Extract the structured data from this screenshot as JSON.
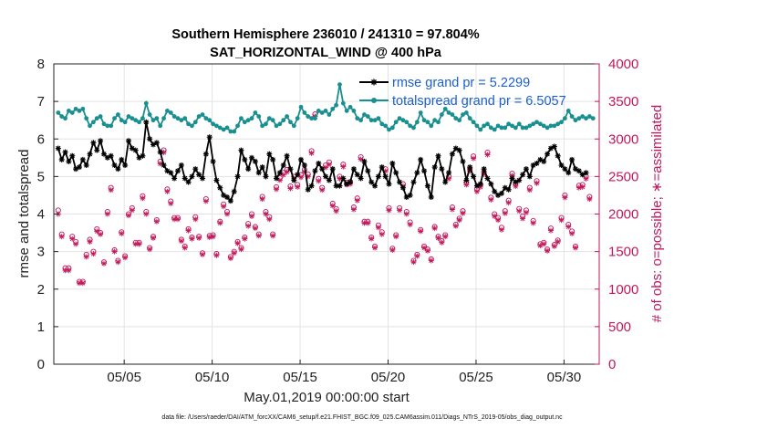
{
  "chart_data": {
    "type": "line",
    "title_line1": "Southern Hemisphere 236010 / 241310 = 97.804%",
    "title_line2": "SAT_HORIZONTAL_WIND @ 400 hPa",
    "xlabel": "May.01,2019 00:00:00 start",
    "ylabel_left": "rmse and totalspread",
    "ylabel_right": "# of obs: o=possible; ∗=assimilated",
    "footer": "data file: /Users/raeder/DAI/ATM_forcXX/CAM6_setup/f.e21.FHIST_BGC.f09_025.CAM6assim.011/Diags_NTrS_2019-05/obs_diag_output.nc",
    "xlim": [
      1,
      32
    ],
    "ylim_left": [
      0,
      8
    ],
    "ylim_right": [
      0,
      4000
    ],
    "x_ticks": [
      5,
      10,
      15,
      20,
      25,
      30
    ],
    "x_tick_labels": [
      "05/05",
      "05/10",
      "05/15",
      "05/20",
      "05/25",
      "05/30"
    ],
    "y_left_ticks": [
      "0",
      "1",
      "2",
      "3",
      "4",
      "5",
      "6",
      "7",
      "8"
    ],
    "y_right_ticks": [
      "0",
      "500",
      "1000",
      "1500",
      "2000",
      "2500",
      "3000",
      "3500",
      "4000"
    ],
    "colors": {
      "rmse": "#000000",
      "spread": "#1a8f8f",
      "obs": "#c2185b",
      "legend_text": "#1a5fd0",
      "grid": "#e3e3e3"
    },
    "series": [
      {
        "name": "rmse grand pr = 5.2299",
        "axis": "left",
        "values": [
          5.75,
          5.45,
          5.65,
          5.4,
          5.55,
          5.2,
          5.25,
          5.45,
          5.3,
          5.6,
          5.9,
          5.7,
          5.95,
          5.6,
          5.5,
          5.55,
          5.3,
          5.2,
          5.45,
          5.3,
          5.95,
          5.75,
          5.7,
          5.5,
          5.55,
          6.45,
          6.0,
          5.85,
          5.9,
          5.65,
          5.3,
          5.15,
          5.1,
          4.95,
          5.15,
          5.3,
          4.95,
          4.85,
          5.0,
          5.2,
          5.05,
          4.95,
          5.6,
          6.05,
          5.4,
          4.9,
          4.7,
          4.5,
          4.45,
          4.35,
          4.6,
          5.0,
          5.7,
          5.45,
          5.2,
          5.5,
          5.4,
          5.1,
          5.25,
          5.0,
          5.6,
          5.45,
          4.95,
          5.1,
          5.3,
          5.55,
          5.2,
          4.9,
          5.05,
          5.45,
          5.3,
          4.65,
          4.75,
          5.15,
          5.35,
          5.2,
          5.0,
          4.9,
          5.2,
          4.75,
          4.75,
          4.95,
          4.8,
          4.85,
          5.2,
          5.05,
          4.95,
          5.4,
          5.15,
          4.85,
          4.75,
          5.0,
          5.25,
          5.0,
          4.8,
          5.35,
          5.1,
          4.85,
          4.7,
          4.45,
          4.5,
          4.85,
          5.1,
          5.45,
          5.15,
          4.75,
          4.45,
          5.25,
          5.55,
          5.2,
          4.85,
          5.1,
          5.6,
          5.75,
          5.7,
          5.4,
          4.9,
          5.25,
          5.0,
          4.75,
          4.8,
          5.2,
          4.95,
          4.8,
          4.6,
          4.5,
          4.55,
          4.7,
          4.65,
          4.95,
          4.85,
          4.9,
          5.05,
          5.2,
          5.0,
          5.3,
          5.35,
          5.45,
          5.4,
          5.6,
          5.75,
          5.8,
          5.55,
          5.3,
          5.2,
          5.1,
          5.45,
          5.2,
          5.15,
          5.05,
          5.1
        ]
      },
      {
        "name": "totalspread grand pr = 6.5057",
        "axis": "left",
        "values": [
          6.7,
          6.6,
          6.55,
          6.75,
          6.7,
          6.8,
          6.75,
          6.8,
          6.55,
          6.35,
          6.45,
          6.55,
          6.6,
          6.4,
          6.35,
          6.35,
          6.55,
          6.65,
          6.5,
          6.45,
          6.6,
          6.55,
          6.5,
          6.45,
          6.55,
          6.95,
          6.65,
          6.5,
          6.55,
          6.35,
          6.55,
          6.75,
          6.7,
          6.6,
          6.55,
          6.5,
          6.55,
          6.4,
          6.35,
          6.45,
          6.6,
          6.65,
          6.55,
          6.5,
          6.4,
          6.35,
          6.3,
          6.25,
          6.3,
          6.2,
          6.2,
          6.35,
          6.55,
          6.45,
          6.5,
          6.55,
          6.7,
          6.6,
          6.35,
          6.4,
          6.55,
          6.5,
          6.35,
          6.4,
          6.5,
          6.6,
          6.45,
          6.35,
          6.55,
          6.85,
          6.7,
          6.6,
          6.55,
          6.55,
          6.75,
          6.7,
          6.75,
          6.65,
          6.8,
          6.9,
          7.45,
          6.95,
          6.75,
          6.85,
          6.75,
          6.55,
          6.5,
          6.65,
          6.6,
          6.5,
          6.5,
          6.55,
          6.4,
          6.35,
          6.25,
          6.3,
          6.45,
          6.55,
          6.5,
          6.45,
          6.35,
          6.3,
          6.45,
          6.7,
          6.5,
          6.45,
          6.35,
          6.5,
          6.45,
          6.65,
          6.8,
          6.7,
          6.65,
          6.55,
          6.5,
          6.65,
          6.7,
          6.55,
          6.45,
          6.35,
          6.25,
          6.35,
          6.4,
          6.3,
          6.25,
          6.35,
          6.3,
          6.3,
          6.4,
          6.35,
          6.3,
          6.4,
          6.3,
          6.3,
          6.35,
          6.4,
          6.45,
          6.4,
          6.35,
          6.3,
          6.35,
          6.35,
          6.4,
          6.45,
          6.55,
          6.75,
          6.6,
          6.5,
          6.55,
          6.6,
          6.55,
          6.6,
          6.55
        ]
      },
      {
        "name": "obs possible",
        "axis": "right",
        "marker": "o",
        "values": [
          2050,
          1730,
          1280,
          1280,
          1700,
          1630,
          1100,
          1100,
          1460,
          1660,
          1500,
          1800,
          1750,
          1360,
          2030,
          2350,
          1520,
          1380,
          1760,
          1440,
          2000,
          2080,
          1620,
          1620,
          2240,
          2030,
          1550,
          1700,
          1920,
          2700,
          2850,
          2330,
          2170,
          1950,
          1950,
          1660,
          1570,
          1800,
          1690,
          1960,
          1700,
          1480,
          2200,
          1710,
          1720,
          1470,
          1900,
          2130,
          2030,
          1430,
          1500,
          1630,
          1550,
          1690,
          1870,
          2000,
          1830,
          1730,
          2230,
          2030,
          1960,
          1730,
          2360,
          2480,
          2550,
          2590,
          2370,
          2500,
          2390,
          2520,
          2590,
          2530,
          2840,
          3330,
          2470,
          2350,
          2650,
          2690,
          2140,
          2070,
          2500,
          2660,
          2420,
          2430,
          2090,
          2210,
          2760,
          1900,
          1900,
          1690,
          1570,
          1850,
          1760,
          2600,
          2080,
          1540,
          1720,
          2080,
          2400,
          2030,
          1890,
          1380,
          1460,
          1790,
          1570,
          1530,
          1400,
          1830,
          1700,
          1640,
          1720,
          2500,
          2090,
          1860,
          1940,
          2040,
          2420,
          2600,
          2770,
          2330,
          2390,
          2560,
          2820,
          2220,
          2000,
          1950,
          1820,
          2040,
          2180,
          2540,
          2400,
          2070,
          1970,
          2050,
          2350,
          1910,
          2440,
          1600,
          1620,
          1530,
          1810,
          1590,
          1650,
          1950,
          2250,
          1860,
          1770,
          1570,
          2380,
          2390,
          2500,
          2230
        ]
      },
      {
        "name": "obs assimilated",
        "axis": "right",
        "marker": "*",
        "values": [
          2000,
          1700,
          1250,
          1250,
          1670,
          1600,
          1080,
          1080,
          1430,
          1630,
          1470,
          1770,
          1730,
          1340,
          2000,
          2320,
          1500,
          1360,
          1740,
          1420,
          1980,
          2050,
          1600,
          1600,
          2210,
          2000,
          1530,
          1680,
          1900,
          2670,
          2820,
          2300,
          2140,
          1930,
          1930,
          1640,
          1550,
          1780,
          1670,
          1930,
          1680,
          1460,
          2170,
          1690,
          1700,
          1450,
          1880,
          2100,
          2000,
          1410,
          1480,
          1610,
          1530,
          1670,
          1840,
          1970,
          1810,
          1710,
          2200,
          2000,
          1930,
          1710,
          2330,
          2450,
          2520,
          2560,
          2340,
          2470,
          2360,
          2490,
          2560,
          2500,
          2810,
          3300,
          2440,
          2320,
          2620,
          2660,
          2110,
          2040,
          2470,
          2630,
          2390,
          2400,
          2060,
          2180,
          2730,
          1880,
          1880,
          1670,
          1550,
          1820,
          1730,
          2570,
          2050,
          1520,
          1700,
          2050,
          2370,
          2000,
          1860,
          1360,
          1440,
          1770,
          1550,
          1510,
          1380,
          1810,
          1680,
          1620,
          1700,
          2470,
          2060,
          1840,
          1920,
          2010,
          2390,
          2570,
          2740,
          2300,
          2360,
          2530,
          2790,
          2190,
          1970,
          1920,
          1790,
          2010,
          2150,
          2510,
          2370,
          2040,
          1940,
          2020,
          2320,
          1880,
          2410,
          1580,
          1600,
          1510,
          1780,
          1570,
          1630,
          1920,
          2220,
          1830,
          1740,
          1550,
          2350,
          2360,
          2470,
          2200
        ]
      }
    ]
  }
}
